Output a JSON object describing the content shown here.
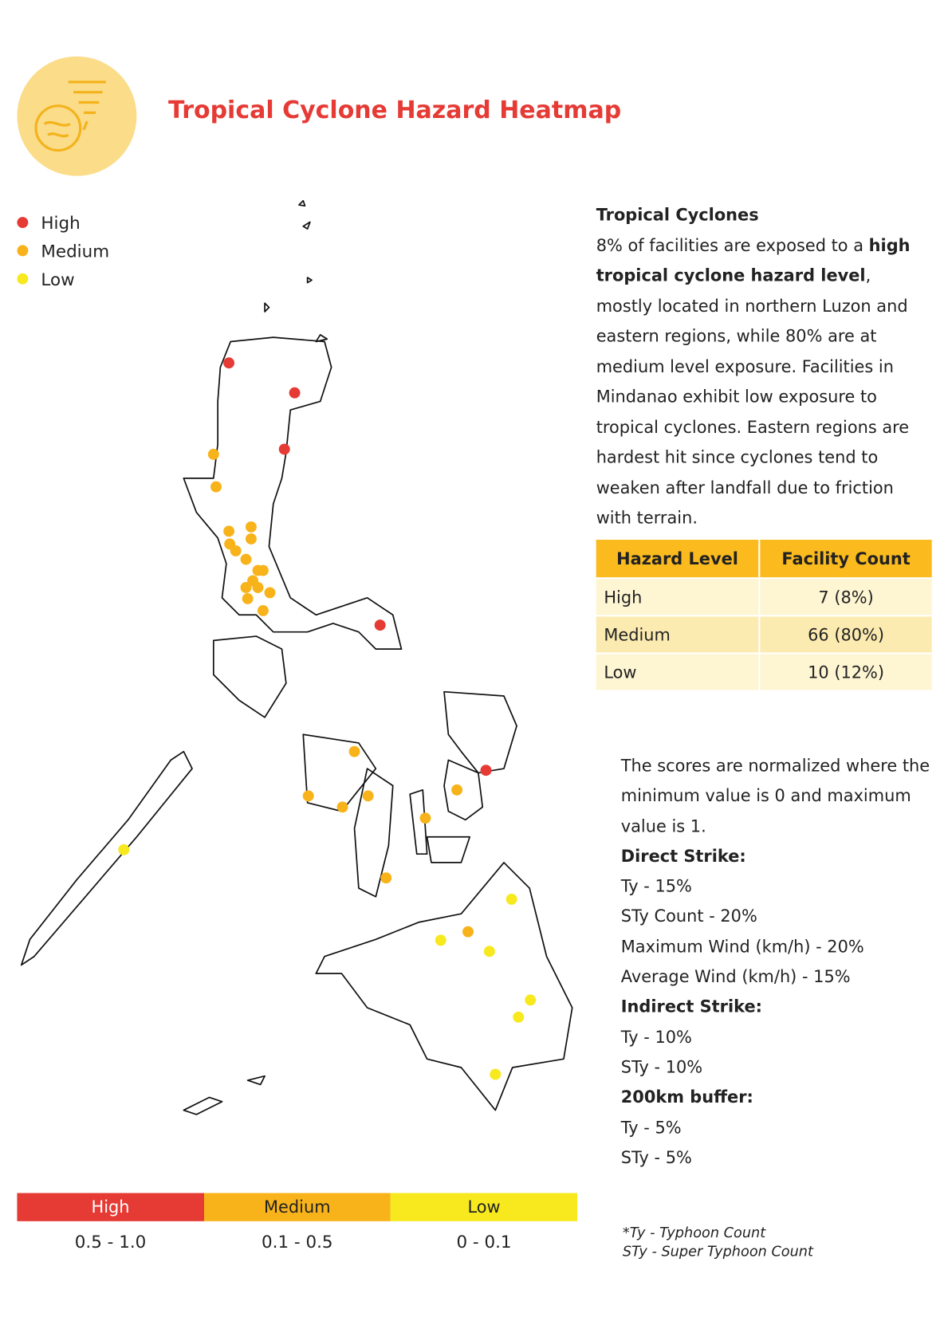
{
  "header": {
    "title": "Tropical Cyclone Hazard Heatmap"
  },
  "legend": {
    "items": [
      {
        "label": "High",
        "color": "#e63a35"
      },
      {
        "label": "Medium",
        "color": "#f8b31b"
      },
      {
        "label": "Low",
        "color": "#f7e91e"
      }
    ]
  },
  "description": {
    "heading": "Tropical Cyclones",
    "paragraph": [
      {
        "text": "8% of facilities are exposed to a ",
        "bold": false
      },
      {
        "text": "high tropical cyclone hazard level",
        "bold": true
      },
      {
        "text": ", mostly located in northern Luzon and eastern regions, while 80% are at medium level exposure. Facilities in Mindanao exhibit low exposure to tropical cyclones. Eastern regions are hardest hit since cyclones tend to weaken after landfall due to friction with terrain.",
        "bold": false
      }
    ]
  },
  "table": {
    "headers": [
      "Hazard Level",
      "Facility Count"
    ],
    "rows": [
      [
        "High",
        "7 (8%)"
      ],
      [
        "Medium",
        "66 (80%)"
      ],
      [
        "Low",
        "10 (12%)"
      ]
    ]
  },
  "notes": {
    "intro": "The scores are normalized where the minimum value is 0 and maximum value is 1.",
    "groups": [
      {
        "heading": "Direct Strike:",
        "items": [
          "Ty - 15%",
          "STy Count - 20%",
          "Maximum Wind (km/h) - 20%",
          "Average Wind (km/h) - 15%"
        ]
      },
      {
        "heading": "Indirect Strike:",
        "items": [
          "Ty - 10%",
          "STy - 10%"
        ]
      },
      {
        "heading": "200km buffer:",
        "items": [
          "Ty - 5%",
          "STy - 5%"
        ]
      }
    ]
  },
  "scale": [
    {
      "label": "High",
      "range": "0.5 - 1.0",
      "color": "#e63a35"
    },
    {
      "label": "Medium",
      "range": "0.1 - 0.5",
      "color": "#f8b31b"
    },
    {
      "label": "Low",
      "range": "0 - 0.1",
      "color": "#f7e91e"
    }
  ],
  "footnote": [
    "*Ty - Typhoon Count",
    "STy - Super Typhoon Count"
  ]
}
